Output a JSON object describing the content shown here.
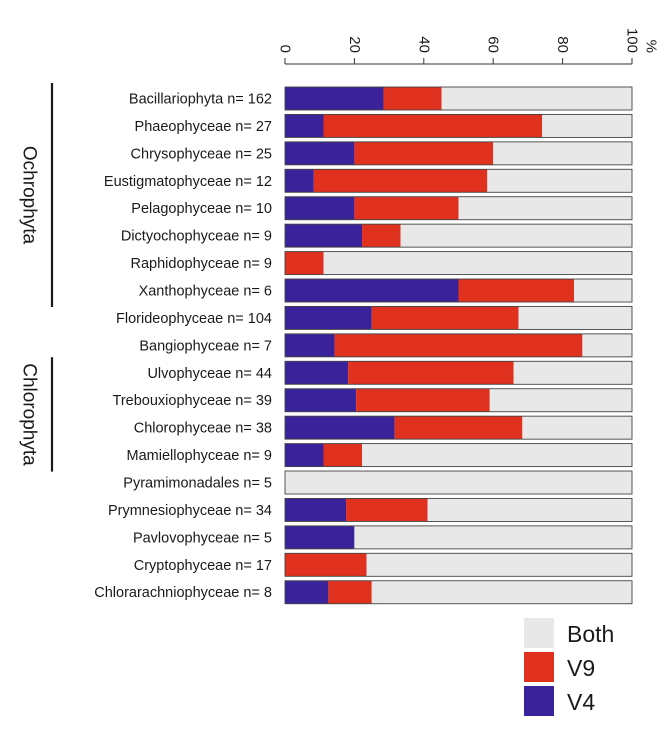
{
  "chart_data": {
    "type": "bar",
    "orientation": "horizontal",
    "stacked": true,
    "xlim": [
      0,
      100
    ],
    "x_ticks": [
      "0",
      "20",
      "40",
      "60",
      "80",
      "100"
    ],
    "x_unit": "%",
    "categories": [
      "Bacillariophyta n= 162",
      "Phaeophyceae n= 27",
      "Chrysophyceae n= 25",
      "Eustigmatophyceae n= 12",
      "Pelagophyceae n= 10",
      "Dictyochophyceae n= 9",
      "Raphidophyceae n= 9",
      "Xanthophyceae n= 6",
      "Florideophyceae n= 104",
      "Bangiophyceae n= 7",
      "Ulvophyceae n= 44",
      "Trebouxiophyceae n= 39",
      "Chlorophyceae n= 38",
      "Mamiellophyceae n= 9",
      "Pyramimonadales n= 5",
      "Prymnesiophyceae n= 34",
      "Pavlovophyceae n= 5",
      "Cryptophyceae n= 17",
      "Chlorarachniophyceae n= 8"
    ],
    "series": [
      {
        "name": "V4",
        "color": "#3a239a",
        "values": [
          28.4,
          11.1,
          20.0,
          8.3,
          20.0,
          22.2,
          0,
          50.0,
          25.0,
          14.3,
          18.2,
          20.5,
          31.6,
          11.1,
          0,
          17.6,
          20.0,
          0,
          12.5
        ]
      },
      {
        "name": "V9",
        "color": "#e0301e",
        "values": [
          16.7,
          63.0,
          40.0,
          50.0,
          30.0,
          11.1,
          11.1,
          33.3,
          42.3,
          71.4,
          47.7,
          38.5,
          36.8,
          11.1,
          0,
          23.5,
          0,
          23.5,
          12.5
        ]
      },
      {
        "name": "Both",
        "color": "#e8e8e8",
        "values": [
          54.9,
          25.9,
          40.0,
          41.7,
          50.0,
          66.7,
          88.9,
          16.7,
          32.7,
          14.3,
          34.1,
          41.0,
          31.6,
          77.8,
          100,
          58.9,
          80.0,
          76.5,
          75.0
        ]
      }
    ],
    "legend": {
      "position": "bottom-right",
      "order": [
        "Both",
        "V9",
        "V4"
      ]
    },
    "groups": [
      {
        "label": "Ochrophyta",
        "from": 0,
        "to": 7
      },
      {
        "label": "Chlorophyta",
        "from": 10,
        "to": 13
      }
    ],
    "grid": false
  }
}
